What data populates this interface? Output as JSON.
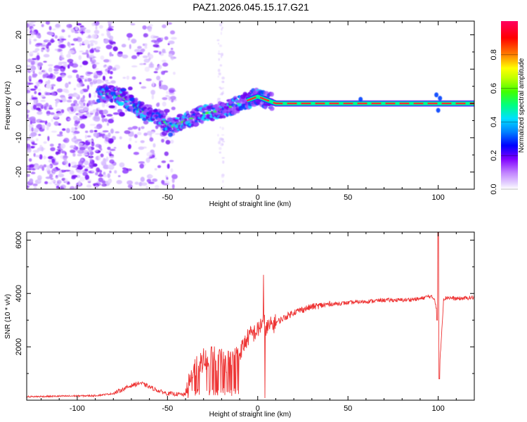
{
  "title": "PAZ1.2026.045.15.17.G21",
  "chart_data": [
    {
      "type": "heatmap",
      "xlabel": "Height of straight line (km)",
      "ylabel": "Frequency (Hz)",
      "xlim": [
        -128,
        120
      ],
      "ylim": [
        -25,
        24
      ],
      "xticks": [
        -100,
        -50,
        0,
        50,
        100
      ],
      "xtick_labels": [
        "-100",
        "-50",
        "0",
        "50",
        "100"
      ],
      "yticks": [
        -20,
        -10,
        0,
        10,
        20
      ],
      "ytick_labels": [
        "-20",
        "-10",
        "0",
        "10",
        "20"
      ],
      "colorbar": {
        "label": "Normalized spectral amplitude",
        "range": [
          0,
          1
        ],
        "ticks": [
          0.0,
          0.2,
          0.4,
          0.6,
          0.8
        ],
        "tick_labels": [
          "0.0",
          "0.2",
          "0.4",
          "0.6",
          "0.8"
        ],
        "colors": [
          "#ffffff",
          "#c080ff",
          "#8000ff",
          "#0000ff",
          "#00c8ff",
          "#00ff80",
          "#40ff00",
          "#ffff00",
          "#ff8000",
          "#ff0000",
          "#ff0060"
        ]
      },
      "ridge": {
        "x": [
          -85,
          -75,
          -65,
          -55,
          -48,
          -40,
          -30,
          -20,
          -10,
          -5,
          0,
          5,
          10,
          20,
          40,
          60,
          80,
          100,
          120
        ],
        "frequency": [
          3,
          2,
          -2,
          -4,
          -7,
          -5,
          -3,
          -2,
          0,
          1,
          2,
          1,
          0,
          0,
          0,
          0,
          0,
          0,
          0
        ]
      }
    },
    {
      "type": "line",
      "xlabel": "Height of straight line (km)",
      "ylabel": "SNR (10 * v/v)",
      "xlim": [
        -128,
        120
      ],
      "ylim": [
        0,
        6300
      ],
      "xticks": [
        -100,
        -50,
        0,
        50,
        100
      ],
      "xtick_labels": [
        "-100",
        "-50",
        "0",
        "50",
        "100"
      ],
      "yticks": [
        2000,
        4000,
        6000
      ],
      "ytick_labels": [
        "2000",
        "4000",
        "6000"
      ],
      "line_color": "#ee3333",
      "series": [
        {
          "name": "SNR",
          "x": [
            -128,
            -110,
            -90,
            -80,
            -75,
            -70,
            -65,
            -60,
            -55,
            -50,
            -45,
            -40,
            -35,
            -30,
            -25,
            -20,
            -15,
            -10,
            -5,
            0,
            3,
            5,
            10,
            15,
            20,
            30,
            40,
            50,
            60,
            70,
            80,
            90,
            95,
            98,
            100,
            101,
            103,
            105,
            110,
            120
          ],
          "y": [
            130,
            150,
            170,
            250,
            400,
            550,
            650,
            500,
            350,
            250,
            230,
            200,
            1200,
            1500,
            1600,
            1500,
            1450,
            1800,
            2400,
            2600,
            3000,
            2700,
            2900,
            3100,
            3300,
            3500,
            3600,
            3650,
            3700,
            3750,
            3750,
            3800,
            3900,
            3800,
            3100,
            1500,
            3800,
            3850,
            3800,
            3850
          ]
        }
      ]
    }
  ]
}
